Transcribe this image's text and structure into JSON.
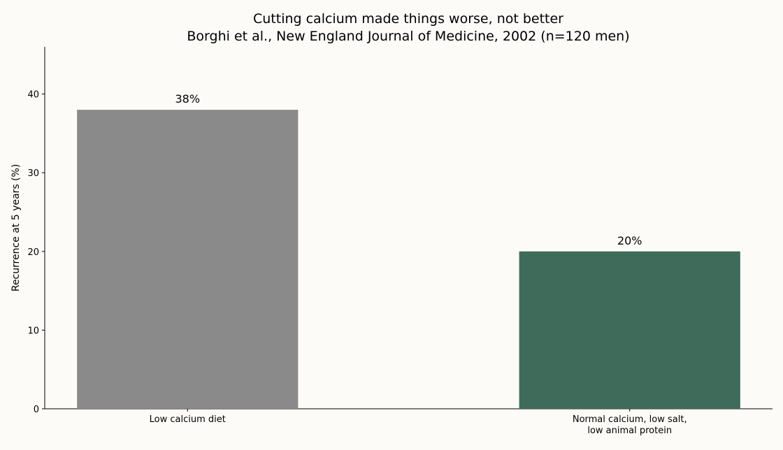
{
  "chart_data": {
    "type": "bar",
    "title": "Cutting calcium made things worse, not better",
    "subtitle": "Borghi et al., New England Journal of Medicine, 2002 (n=120 men)",
    "y_label": "Recurrence at 5 years (%)",
    "categories": [
      "Low calcium diet",
      "Normal calcium, low salt,\nlow animal protein"
    ],
    "values": [
      38,
      20
    ],
    "value_labels": [
      "38%",
      "20%"
    ],
    "colors": [
      "#8a8a8a",
      "#3f6b5a"
    ],
    "ylim": [
      0,
      46
    ],
    "yticks": [
      0,
      10,
      20,
      30,
      40
    ],
    "grid": false
  }
}
